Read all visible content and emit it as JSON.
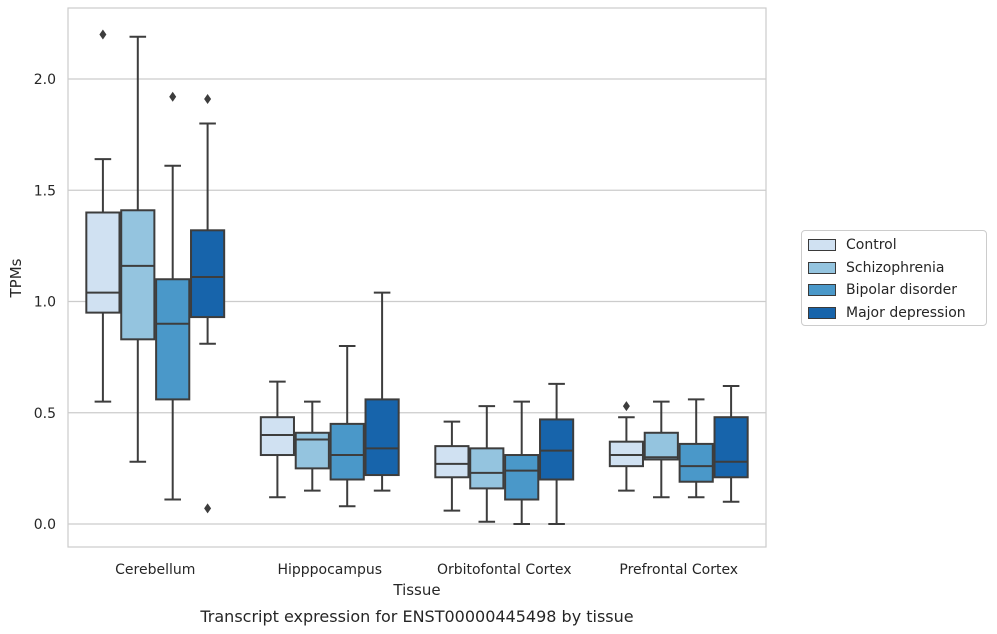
{
  "chart_data": {
    "type": "box",
    "ylabel": "TPMs",
    "xlabel": "Tissue",
    "caption": "Transcript expression for ENST00000445498 by tissue",
    "ylim": [
      -0.1,
      2.3
    ],
    "yticks": [
      "0.0",
      "0.5",
      "1.0",
      "1.5",
      "2.0"
    ],
    "ytick_values": [
      0.0,
      0.5,
      1.0,
      1.5,
      2.0
    ],
    "grid": "horizontal",
    "legend_placement": "right",
    "categories": [
      "Cerebellum",
      "Hipppocampus",
      "Orbitofontal Cortex",
      "Prefrontal Cortex"
    ],
    "series": [
      {
        "name": "Control",
        "color": "#d0e1f2",
        "boxes": [
          {
            "q1": 0.95,
            "median": 1.04,
            "q3": 1.4,
            "whislo": 0.55,
            "whishi": 1.64,
            "fliers": [
              2.2
            ]
          },
          {
            "q1": 0.31,
            "median": 0.4,
            "q3": 0.48,
            "whislo": 0.12,
            "whishi": 0.64,
            "fliers": []
          },
          {
            "q1": 0.21,
            "median": 0.27,
            "q3": 0.35,
            "whislo": 0.06,
            "whishi": 0.46,
            "fliers": []
          },
          {
            "q1": 0.26,
            "median": 0.31,
            "q3": 0.37,
            "whislo": 0.15,
            "whishi": 0.48,
            "fliers": [
              0.53
            ]
          }
        ]
      },
      {
        "name": "Schizophrenia",
        "color": "#94c4df",
        "boxes": [
          {
            "q1": 0.83,
            "median": 1.16,
            "q3": 1.41,
            "whislo": 0.28,
            "whishi": 2.19,
            "fliers": []
          },
          {
            "q1": 0.25,
            "median": 0.38,
            "q3": 0.41,
            "whislo": 0.15,
            "whishi": 0.55,
            "fliers": []
          },
          {
            "q1": 0.16,
            "median": 0.23,
            "q3": 0.34,
            "whislo": 0.01,
            "whishi": 0.53,
            "fliers": []
          },
          {
            "q1": 0.29,
            "median": 0.3,
            "q3": 0.41,
            "whislo": 0.12,
            "whishi": 0.55,
            "fliers": []
          }
        ]
      },
      {
        "name": "Bipolar disorder",
        "color": "#4a98c9",
        "boxes": [
          {
            "q1": 0.56,
            "median": 0.9,
            "q3": 1.1,
            "whislo": 0.11,
            "whishi": 1.61,
            "fliers": [
              1.92
            ]
          },
          {
            "q1": 0.2,
            "median": 0.31,
            "q3": 0.45,
            "whislo": 0.08,
            "whishi": 0.8,
            "fliers": []
          },
          {
            "q1": 0.11,
            "median": 0.24,
            "q3": 0.31,
            "whislo": 0.0,
            "whishi": 0.55,
            "fliers": []
          },
          {
            "q1": 0.19,
            "median": 0.26,
            "q3": 0.36,
            "whislo": 0.12,
            "whishi": 0.56,
            "fliers": []
          }
        ]
      },
      {
        "name": "Major depression",
        "color": "#1764ab",
        "boxes": [
          {
            "q1": 0.93,
            "median": 1.11,
            "q3": 1.32,
            "whislo": 0.81,
            "whishi": 1.8,
            "fliers": [
              1.91,
              0.07
            ]
          },
          {
            "q1": 0.22,
            "median": 0.34,
            "q3": 0.56,
            "whislo": 0.15,
            "whishi": 1.04,
            "fliers": []
          },
          {
            "q1": 0.2,
            "median": 0.33,
            "q3": 0.47,
            "whislo": 0.0,
            "whishi": 0.63,
            "fliers": []
          },
          {
            "q1": 0.21,
            "median": 0.28,
            "q3": 0.48,
            "whislo": 0.1,
            "whishi": 0.62,
            "fliers": []
          }
        ]
      }
    ]
  }
}
